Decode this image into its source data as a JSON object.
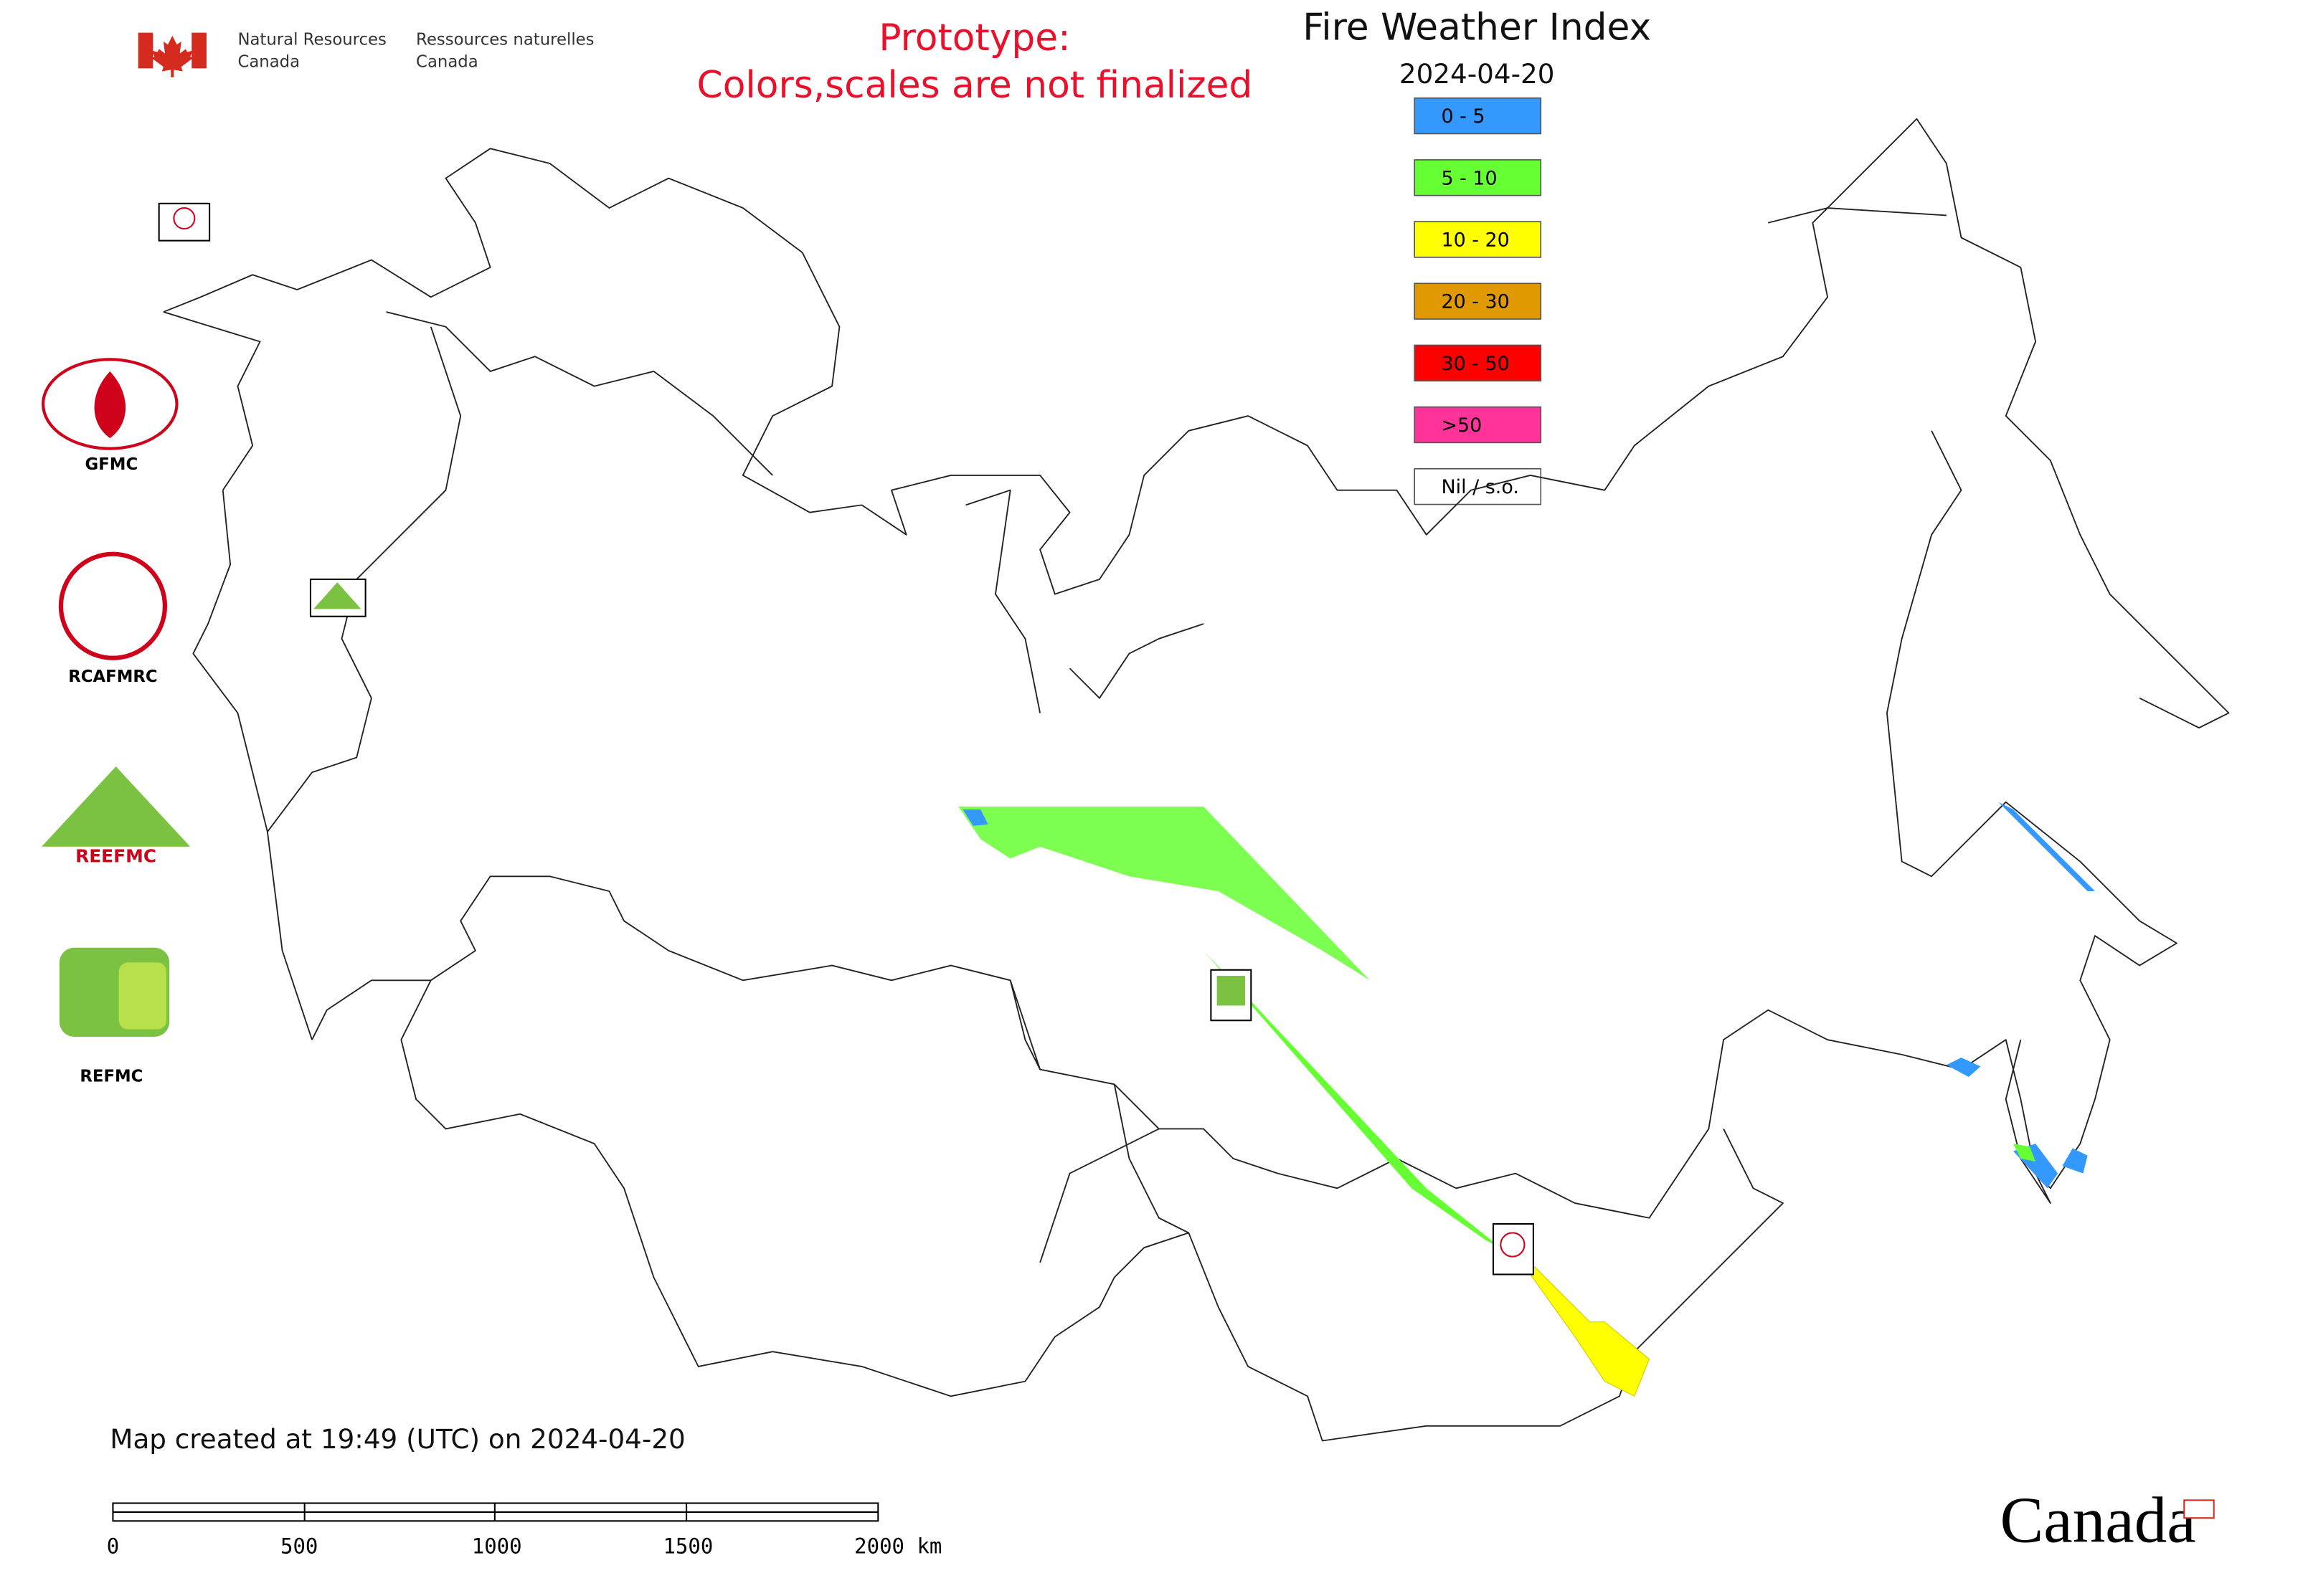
{
  "header": {
    "department_en": [
      "Natural Resources",
      "Canada"
    ],
    "department_fr": [
      "Ressources naturelles",
      "Canada"
    ],
    "prototype_note": [
      "Prototype:",
      "Colors,scales are not finalized"
    ],
    "title": "Fire Weather Index",
    "date": "2024-04-20"
  },
  "legend": [
    {
      "label": "0 - 5",
      "color": "#3399ff"
    },
    {
      "label": "5 - 10",
      "color": "#66ff33"
    },
    {
      "label": "10 - 20",
      "color": "#ffff00"
    },
    {
      "label": "20 - 30",
      "color": "#e09a00"
    },
    {
      "label": "30 - 50",
      "color": "#ff0000"
    },
    {
      "label": ">50",
      "color": "#ff3399"
    },
    {
      "label": "Nil / s.o.",
      "color": "#ffffff"
    }
  ],
  "logos": [
    "GFMC",
    "RCAFMRC",
    "REEFMC",
    "REFMC"
  ],
  "footer": {
    "created": "Map created at 19:49 (UTC) on 2024-04-20",
    "scale_labels": [
      "0",
      "500",
      "1000",
      "1500",
      "2000 km"
    ],
    "wordmark": "Canada"
  }
}
